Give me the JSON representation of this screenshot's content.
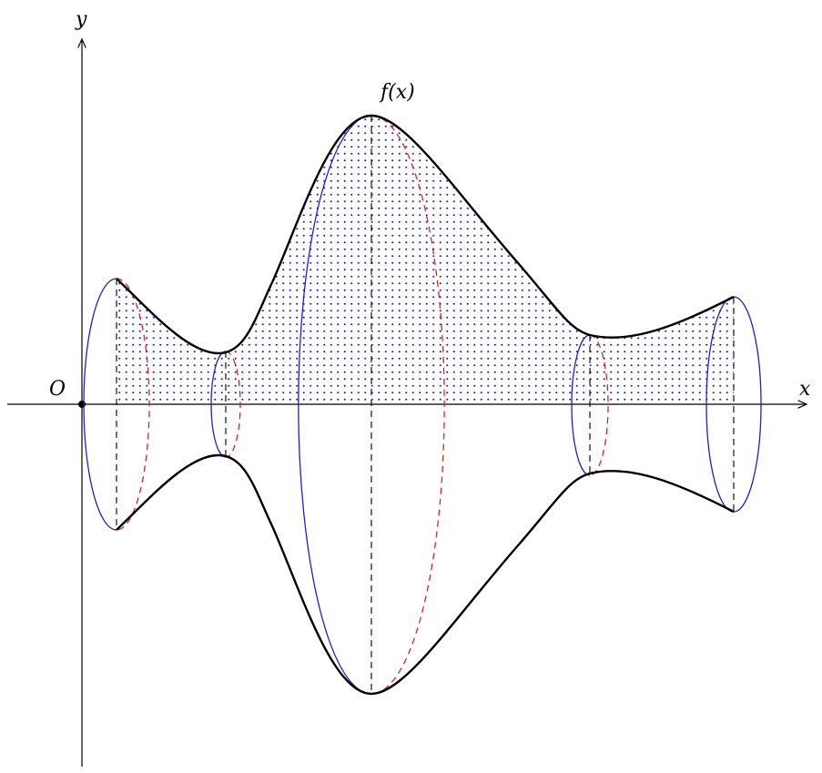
{
  "labels": {
    "y_axis": "y",
    "x_axis": "x",
    "origin": "O",
    "curve": "f(x)"
  },
  "colors": {
    "curve": "#000000",
    "front_ellipse": "#1f1fd0",
    "back_ellipse": "#e02020",
    "fill_dots": "#1a1acc",
    "guides": "#000000"
  },
  "icons": [
    "origin-point-icon",
    "x-arrow-icon",
    "y-arrow-icon"
  ]
}
